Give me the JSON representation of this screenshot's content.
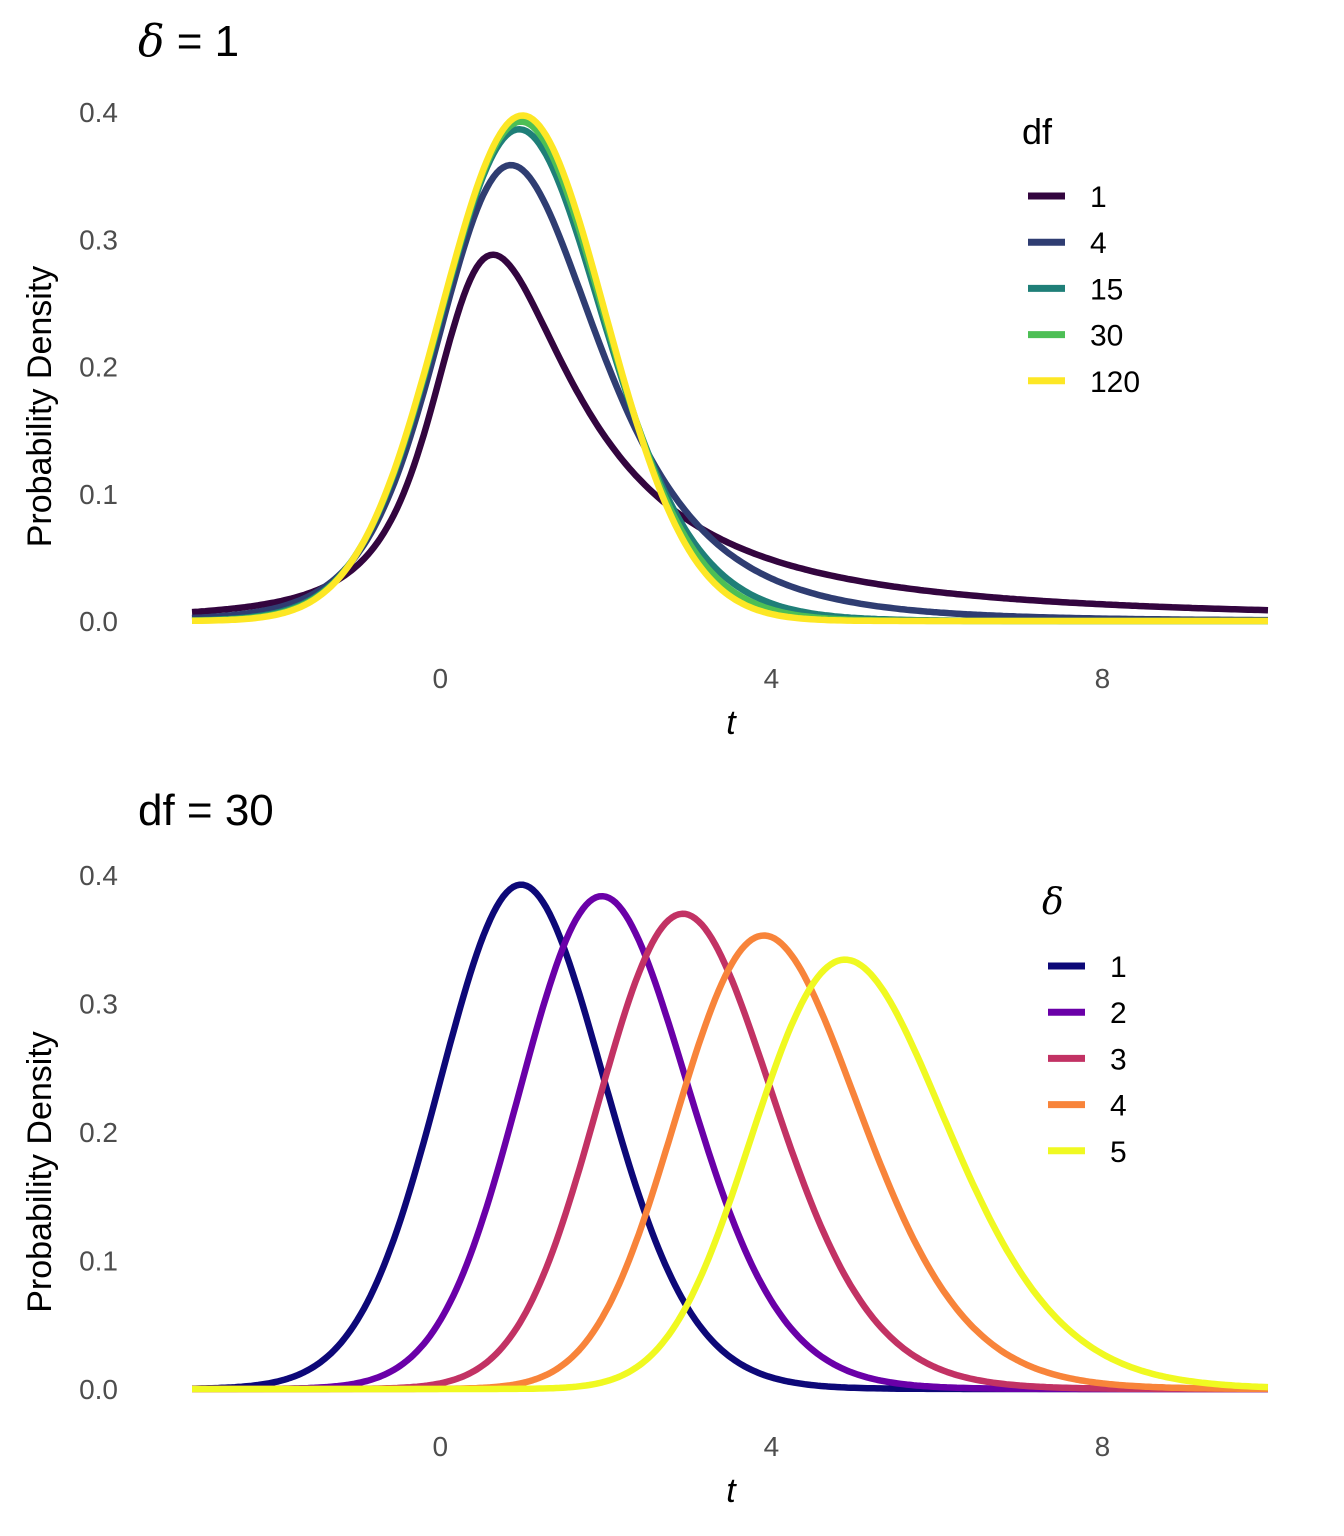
{
  "chart_data": [
    {
      "type": "line",
      "title": "δ = 1",
      "title_symbol": "δ",
      "title_value": "= 1",
      "xlabel": "t",
      "ylabel": "Probability Density",
      "xlim": [
        -3,
        10
      ],
      "ylim": [
        0,
        0.4
      ],
      "xticks": [
        "0",
        "4",
        "8"
      ],
      "xtick_values": [
        0,
        4,
        8
      ],
      "yticks": [
        "0.0",
        "0.1",
        "0.2",
        "0.3",
        "0.4"
      ],
      "ytick_values": [
        0,
        0.1,
        0.2,
        0.3,
        0.4
      ],
      "grid": false,
      "legend_title": "df",
      "legend_placement": "right",
      "distribution": "noncentral t density",
      "series": [
        {
          "name": "1",
          "df": 1,
          "ncp": 1,
          "color": "#33053f"
        },
        {
          "name": "4",
          "df": 4,
          "ncp": 1,
          "color": "#2f3d72"
        },
        {
          "name": "15",
          "df": 15,
          "ncp": 1,
          "color": "#1f7f78"
        },
        {
          "name": "30",
          "df": 30,
          "ncp": 1,
          "color": "#4dbf55"
        },
        {
          "name": "120",
          "df": 120,
          "ncp": 1,
          "color": "#fde725"
        }
      ]
    },
    {
      "type": "line",
      "title": "df = 30",
      "xlabel": "t",
      "ylabel": "Probability Density",
      "xlim": [
        -3,
        10
      ],
      "ylim": [
        0,
        0.4
      ],
      "xticks": [
        "0",
        "4",
        "8"
      ],
      "xtick_values": [
        0,
        4,
        8
      ],
      "yticks": [
        "0.0",
        "0.1",
        "0.2",
        "0.3",
        "0.4"
      ],
      "ytick_values": [
        0,
        0.1,
        0.2,
        0.3,
        0.4
      ],
      "grid": false,
      "legend_title": "δ",
      "legend_placement": "right",
      "distribution": "noncentral t density",
      "series": [
        {
          "name": "1",
          "df": 30,
          "ncp": 1,
          "color": "#0d0878"
        },
        {
          "name": "2",
          "df": 30,
          "ncp": 2,
          "color": "#6a00a8"
        },
        {
          "name": "3",
          "df": 30,
          "ncp": 3,
          "color": "#c23264"
        },
        {
          "name": "4",
          "df": 30,
          "ncp": 4,
          "color": "#f8843a"
        },
        {
          "name": "5",
          "df": 30,
          "ncp": 5,
          "color": "#f0f921"
        }
      ]
    }
  ]
}
